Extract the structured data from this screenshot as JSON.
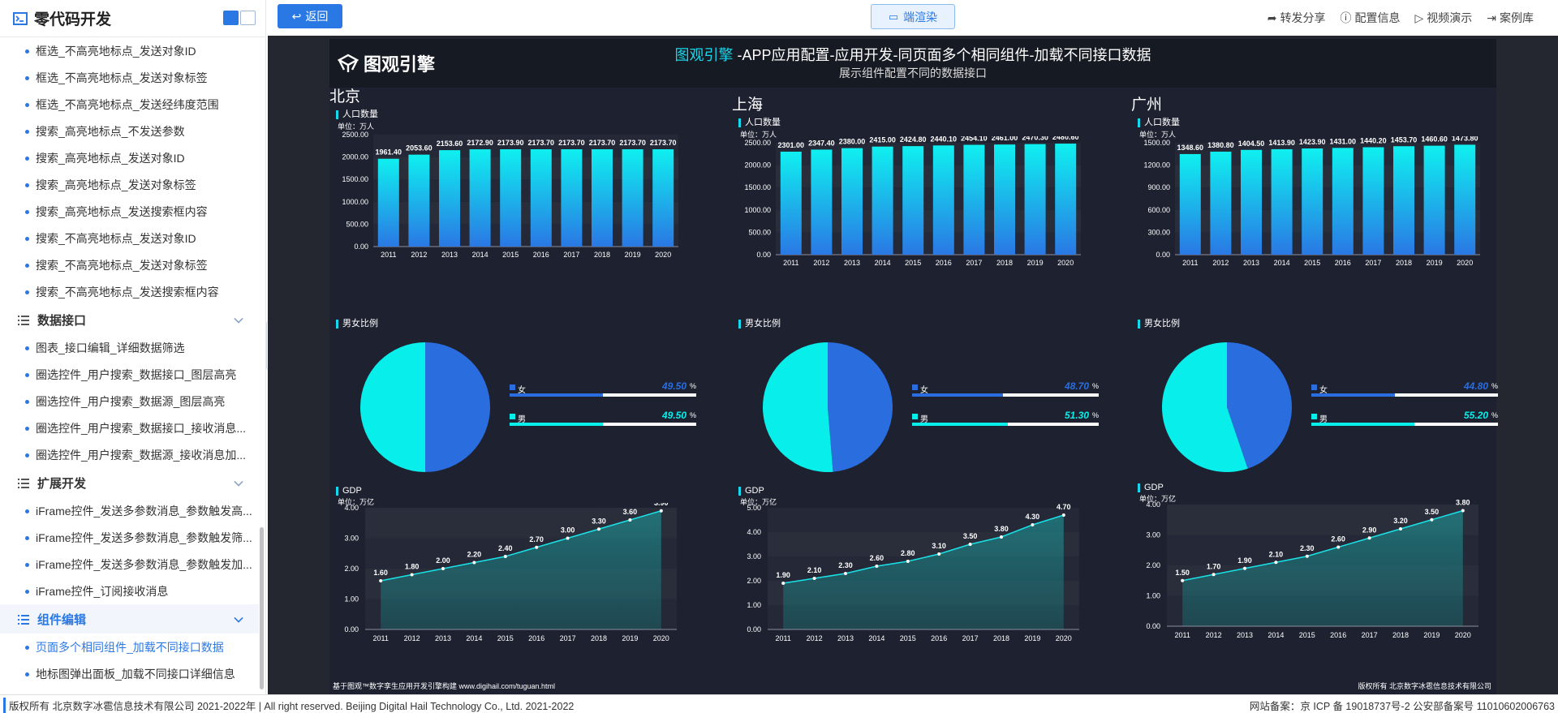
{
  "sidebar": {
    "title": "零代码开发",
    "items": [
      {
        "label": "框选_不高亮地标点_发送对象ID",
        "type": "item"
      },
      {
        "label": "框选_不高亮地标点_发送对象标签",
        "type": "item"
      },
      {
        "label": "框选_不高亮地标点_发送经纬度范围",
        "type": "item"
      },
      {
        "label": "搜索_高亮地标点_不发送参数",
        "type": "item"
      },
      {
        "label": "搜索_高亮地标点_发送对象ID",
        "type": "item"
      },
      {
        "label": "搜索_高亮地标点_发送对象标签",
        "type": "item"
      },
      {
        "label": "搜索_高亮地标点_发送搜索框内容",
        "type": "item"
      },
      {
        "label": "搜索_不高亮地标点_发送对象ID",
        "type": "item"
      },
      {
        "label": "搜索_不高亮地标点_发送对象标签",
        "type": "item"
      },
      {
        "label": "搜索_不高亮地标点_发送搜索框内容",
        "type": "item"
      },
      {
        "label": "数据接口",
        "type": "group"
      },
      {
        "label": "图表_接口编辑_详细数据筛选",
        "type": "item"
      },
      {
        "label": "圈选控件_用户搜索_数据接口_图层高亮",
        "type": "item"
      },
      {
        "label": "圈选控件_用户搜索_数据源_图层高亮",
        "type": "item"
      },
      {
        "label": "圈选控件_用户搜索_数据接口_接收消息...",
        "type": "item"
      },
      {
        "label": "圈选控件_用户搜索_数据源_接收消息加...",
        "type": "item"
      },
      {
        "label": "扩展开发",
        "type": "group"
      },
      {
        "label": "iFrame控件_发送多参数消息_参数触发高...",
        "type": "item"
      },
      {
        "label": "iFrame控件_发送多参数消息_参数触发筛...",
        "type": "item"
      },
      {
        "label": "iFrame控件_发送多参数消息_参数触发加...",
        "type": "item"
      },
      {
        "label": "iFrame控件_订阅接收消息",
        "type": "item"
      },
      {
        "label": "组件编辑",
        "type": "group",
        "selected": true
      },
      {
        "label": "页面多个相同组件_加载不同接口数据",
        "type": "item",
        "active": true
      },
      {
        "label": "地标图弹出面板_加载不同接口详细信息",
        "type": "item"
      }
    ]
  },
  "topbar": {
    "back_label": "返回",
    "render_label": "端渲染",
    "actions": [
      "转发分享",
      "配置信息",
      "视频演示",
      "案例库"
    ]
  },
  "dashboard": {
    "logo_text": "图观引擎",
    "title_highlight": "图观引擎",
    "title_rest": " -APP应用配置-应用开发-同页面多个相同组件-加载不同接口数据",
    "subtitle": "展示组件配置不同的数据接口",
    "footer_left": "基于图观™数字孪生应用开发引擎构建 www.digihail.com/tuguan.html",
    "footer_right": "版权所有 北京数字冰雹信息技术有限公司",
    "labels": {
      "population": "人口数量",
      "unit_pop": "单位：万人",
      "ratio": "男女比例",
      "gdp": "GDP",
      "unit_gdp": "单位：万亿",
      "female": "女",
      "male": "男",
      "pct": "%"
    },
    "colors": {
      "bar_top": "#0ff0f0",
      "bar_bottom": "#2a78e4",
      "female": "#2a6ddf",
      "male": "#08eeea",
      "line": "#19e3e8"
    }
  },
  "chart_data": [
    {
      "city": "北京",
      "type": "bar",
      "title": "人口数量",
      "ylabel": "单位：万人",
      "categories": [
        "2011",
        "2012",
        "2013",
        "2014",
        "2015",
        "2016",
        "2017",
        "2018",
        "2019",
        "2020"
      ],
      "values": [
        1961.4,
        2053.6,
        2153.6,
        2172.9,
        2173.9,
        2173.7,
        2173.7,
        2173.7,
        2173.7,
        2173.7
      ],
      "yticks": [
        "0.00",
        "500.00",
        "1000.00",
        "1500.00",
        "2000.00",
        "2500.00"
      ],
      "ylim": [
        0,
        2500
      ]
    },
    {
      "city": "北京",
      "type": "pie",
      "title": "男女比例",
      "slices": [
        {
          "name": "女",
          "value": 49.5
        },
        {
          "name": "男",
          "value": 49.5
        }
      ]
    },
    {
      "city": "北京",
      "type": "area",
      "title": "GDP",
      "ylabel": "单位：万亿",
      "categories": [
        "2011",
        "2012",
        "2013",
        "2014",
        "2015",
        "2016",
        "2017",
        "2018",
        "2019",
        "2020"
      ],
      "values": [
        1.6,
        1.8,
        2.0,
        2.2,
        2.4,
        2.7,
        3.0,
        3.3,
        3.6,
        3.9
      ],
      "yticks": [
        "0.00",
        "1.00",
        "2.00",
        "3.00",
        "4.00"
      ],
      "ylim": [
        0,
        4
      ]
    },
    {
      "city": "上海",
      "type": "bar",
      "title": "人口数量",
      "ylabel": "单位：万人",
      "categories": [
        "2011",
        "2012",
        "2013",
        "2014",
        "2015",
        "2016",
        "2017",
        "2018",
        "2019",
        "2020"
      ],
      "values": [
        2301.0,
        2347.4,
        2380.0,
        2415.0,
        2424.8,
        2440.1,
        2454.1,
        2461.0,
        2470.3,
        2480.6
      ],
      "yticks": [
        "0.00",
        "500.00",
        "1000.00",
        "1500.00",
        "2000.00",
        "2500.00"
      ],
      "ylim": [
        0,
        2500
      ]
    },
    {
      "city": "上海",
      "type": "pie",
      "title": "男女比例",
      "slices": [
        {
          "name": "女",
          "value": 48.7
        },
        {
          "name": "男",
          "value": 51.3
        }
      ]
    },
    {
      "city": "上海",
      "type": "area",
      "title": "GDP",
      "ylabel": "单位：万亿",
      "categories": [
        "2011",
        "2012",
        "2013",
        "2014",
        "2015",
        "2016",
        "2017",
        "2018",
        "2019",
        "2020"
      ],
      "values": [
        1.9,
        2.1,
        2.3,
        2.6,
        2.8,
        3.1,
        3.5,
        3.8,
        4.3,
        4.7
      ],
      "yticks": [
        "0.00",
        "1.00",
        "2.00",
        "3.00",
        "4.00",
        "5.00"
      ],
      "ylim": [
        0,
        5
      ]
    },
    {
      "city": "广州",
      "type": "bar",
      "title": "人口数量",
      "ylabel": "单位：万人",
      "categories": [
        "2011",
        "2012",
        "2013",
        "2014",
        "2015",
        "2016",
        "2017",
        "2018",
        "2019",
        "2020"
      ],
      "values": [
        1348.6,
        1380.8,
        1404.5,
        1413.9,
        1423.9,
        1431.0,
        1440.2,
        1453.7,
        1460.6,
        1473.8
      ],
      "yticks": [
        "0.00",
        "300.00",
        "600.00",
        "900.00",
        "1200.00",
        "1500.00"
      ],
      "ylim": [
        0,
        1500
      ]
    },
    {
      "city": "广州",
      "type": "pie",
      "title": "男女比例",
      "slices": [
        {
          "name": "女",
          "value": 44.8
        },
        {
          "name": "男",
          "value": 55.2
        }
      ]
    },
    {
      "city": "广州",
      "type": "area",
      "title": "GDP",
      "ylabel": "单位：万亿",
      "categories": [
        "2011",
        "2012",
        "2013",
        "2014",
        "2015",
        "2016",
        "2017",
        "2018",
        "2019",
        "2020"
      ],
      "values": [
        1.5,
        1.7,
        1.9,
        2.1,
        2.3,
        2.6,
        2.9,
        3.2,
        3.5,
        3.8
      ],
      "yticks": [
        "0.00",
        "1.00",
        "2.00",
        "3.00",
        "4.00"
      ],
      "ylim": [
        0,
        4
      ]
    }
  ],
  "footer": {
    "left": "版权所有 北京数字冰雹信息技术有限公司 2021-2022年 | All right reserved. Beijing Digital Hail Technology Co., Ltd. 2021-2022",
    "right": "网站备案：京 ICP 备 19018737号-2 公安部备案号 11010602006763"
  }
}
